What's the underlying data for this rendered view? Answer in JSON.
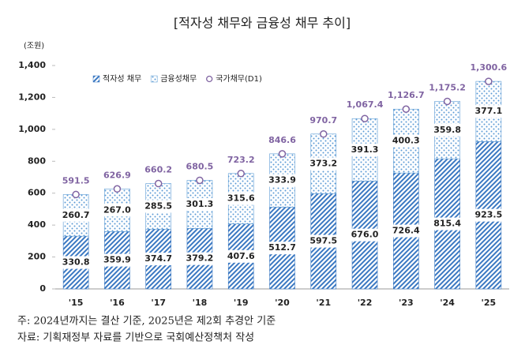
{
  "chart_data": {
    "type": "bar",
    "stacked": true,
    "title": "[적자성 채무와 금융성 채무 추이]",
    "y_label": "(조원)",
    "categories": [
      "'15",
      "'16",
      "'17",
      "'18",
      "'19",
      "'20",
      "'21",
      "'22",
      "'23",
      "'24",
      "'25"
    ],
    "series": [
      {
        "name": "적자성 채무",
        "color": "#3a78c2",
        "pattern": "hatch",
        "values": [
          330.8,
          359.9,
          374.7,
          379.2,
          407.6,
          512.7,
          597.5,
          676.0,
          726.4,
          815.4,
          923.5
        ],
        "value_labels": [
          "330.8",
          "359.9",
          "374.7",
          "379.2",
          "407.6",
          "512.7",
          "597.5",
          "676.0",
          "726.4",
          "815.4",
          "923.5"
        ]
      },
      {
        "name": "금융성채무",
        "color": "#5b9bd5",
        "pattern": "dots",
        "values": [
          260.7,
          267.0,
          285.5,
          301.3,
          315.6,
          333.9,
          373.2,
          391.3,
          400.3,
          359.8,
          377.1
        ],
        "value_labels": [
          "260.7",
          "267.0",
          "285.5",
          "301.3",
          "315.6",
          "333.9",
          "373.2",
          "391.3",
          "400.3",
          "359.8",
          "377.1"
        ]
      },
      {
        "name": "국가채무(D1)",
        "color": "#8064a2",
        "type": "scatter",
        "values": [
          591.5,
          626.9,
          660.2,
          680.5,
          723.2,
          846.6,
          970.7,
          1067.4,
          1126.7,
          1175.2,
          1300.6
        ],
        "value_labels": [
          "591.5",
          "626.9",
          "660.2",
          "680.5",
          "723.2",
          "846.6",
          "970.7",
          "1,067.4",
          "1,126.7",
          "1,175.2",
          "1,300.6"
        ]
      }
    ],
    "ylim": [
      0,
      1400
    ],
    "yticks": [
      0,
      200,
      400,
      600,
      800,
      {
        "value": 1000,
        "label": "1,000"
      },
      {
        "value": 1200,
        "label": "1,200"
      },
      {
        "value": 1400,
        "label": "1,400"
      }
    ],
    "grid": false,
    "legend": "top-left",
    "notes": [
      "주: 2024년까지는 결산 기준, 2025년은 제2회 추경안 기준",
      "자료: 기획재정부 자료를 기반으로 국회예산정책처 작성"
    ]
  }
}
